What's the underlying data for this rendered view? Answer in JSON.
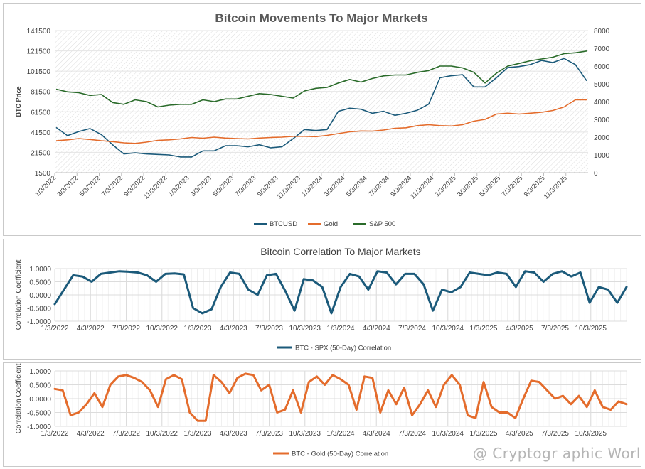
{
  "watermark": "@ Cryptogr  aphic Worl",
  "charts": [
    {
      "type": "line",
      "title": "Bitcoin Movements To Major Markets",
      "ylabel": "BTC Price",
      "y2label": "",
      "ylim": [
        1500,
        141500
      ],
      "y2lim": [
        0,
        8000
      ],
      "yticks": [
        "141500",
        "121500",
        "101500",
        "81500",
        "61500",
        "41500",
        "21500",
        "1500"
      ],
      "y2ticks": [
        "8000",
        "7000",
        "6000",
        "5000",
        "4000",
        "3000",
        "2000",
        "1000",
        "0"
      ],
      "xticks": [
        "1/3/2022",
        "3/3/2022",
        "5/3/2022",
        "7/3/2022",
        "9/3/2022",
        "11/3/2022",
        "1/3/2023",
        "3/3/2023",
        "5/3/2023",
        "7/3/2023",
        "9/3/2023",
        "11/3/2023",
        "1/3/2024",
        "3/3/2024",
        "5/3/2024",
        "7/3/2024",
        "9/3/2024",
        "11/3/2024",
        "1/3/2025",
        "3/3/2025",
        "5/3/2025",
        "7/3/2025",
        "9/3/2025",
        "11/3/2025"
      ],
      "legend_position": "bottom",
      "series": [
        {
          "name": "BTCUSD",
          "axis": "left",
          "color": "#1b5a7a",
          "values": [
            46000,
            38000,
            42000,
            45000,
            39000,
            29000,
            20000,
            21000,
            20000,
            19500,
            19000,
            17000,
            17000,
            23000,
            23000,
            28000,
            28000,
            27000,
            29000,
            26000,
            27000,
            35000,
            44000,
            43000,
            44000,
            62000,
            65000,
            64000,
            60000,
            62000,
            58000,
            60000,
            63000,
            69000,
            95000,
            97000,
            98000,
            86000,
            86000,
            95000,
            105000,
            106000,
            108000,
            112000,
            110000,
            114000,
            108000,
            92000
          ]
        },
        {
          "name": "Gold",
          "axis": "right",
          "color": "#e46c2c",
          "values": [
            1800,
            1850,
            1920,
            1870,
            1800,
            1750,
            1680,
            1650,
            1720,
            1820,
            1850,
            1900,
            1980,
            1940,
            2000,
            1950,
            1920,
            1900,
            1950,
            1980,
            2000,
            2050,
            2050,
            2030,
            2100,
            2200,
            2300,
            2350,
            2340,
            2400,
            2500,
            2530,
            2650,
            2700,
            2650,
            2630,
            2700,
            2900,
            3000,
            3300,
            3350,
            3300,
            3350,
            3400,
            3500,
            3700,
            4100,
            4100
          ]
        },
        {
          "name": "S&P 500",
          "axis": "right",
          "color": "#2a6b2a",
          "values": [
            4700,
            4550,
            4500,
            4350,
            4400,
            3950,
            3850,
            4100,
            4000,
            3700,
            3800,
            3850,
            3850,
            4100,
            4000,
            4150,
            4150,
            4300,
            4450,
            4400,
            4300,
            4200,
            4600,
            4750,
            4800,
            5050,
            5250,
            5100,
            5300,
            5450,
            5500,
            5500,
            5650,
            5750,
            6000,
            6000,
            5900,
            5650,
            5050,
            5600,
            6000,
            6150,
            6300,
            6400,
            6500,
            6700,
            6750,
            6850
          ]
        }
      ]
    },
    {
      "type": "line",
      "title": "Bitcoin Correlation To Major Markets",
      "ylabel": "Correlation Coefficient",
      "ylim": [
        -1,
        1
      ],
      "yticks": [
        "1.0000",
        "0.5000",
        "0.0000",
        "-0.5000",
        "-1.0000"
      ],
      "xticks": [
        "1/3/2022",
        "4/3/2022",
        "7/3/2022",
        "10/3/2022",
        "1/3/2023",
        "4/3/2023",
        "7/3/2023",
        "10/3/2023",
        "1/3/2024",
        "4/3/2024",
        "7/3/2024",
        "10/3/2024",
        "1/3/2025",
        "4/3/2025",
        "7/3/2025",
        "10/3/2025"
      ],
      "legend_position": "bottom",
      "series": [
        {
          "name": "BTC - SPX (50-Day) Correlation",
          "color": "#1b5a7a",
          "values": [
            -0.35,
            0.2,
            0.75,
            0.7,
            0.5,
            0.8,
            0.85,
            0.9,
            0.88,
            0.85,
            0.75,
            0.5,
            0.8,
            0.82,
            0.78,
            -0.5,
            -0.7,
            -0.55,
            0.3,
            0.85,
            0.8,
            0.2,
            0.0,
            0.75,
            0.8,
            0.15,
            -0.6,
            0.6,
            0.55,
            0.3,
            -0.7,
            0.3,
            0.8,
            0.7,
            0.2,
            0.9,
            0.85,
            0.4,
            0.8,
            0.8,
            0.4,
            -0.6,
            0.2,
            0.1,
            0.3,
            0.85,
            0.8,
            0.75,
            0.85,
            0.8,
            0.3,
            0.9,
            0.85,
            0.5,
            0.8,
            0.9,
            0.7,
            0.85,
            -0.3,
            0.3,
            0.2,
            -0.3,
            0.3
          ]
        }
      ]
    },
    {
      "type": "line",
      "title": "",
      "ylabel": "Correlation Coefficient",
      "ylim": [
        -1,
        1
      ],
      "yticks": [
        "1.0000",
        "0.5000",
        "0.0000",
        "-0.5000",
        "-1.0000"
      ],
      "xticks": [
        "1/3/2022",
        "4/3/2022",
        "7/3/2022",
        "10/3/2022",
        "1/3/2023",
        "4/3/2023",
        "7/3/2023",
        "10/3/2023",
        "1/3/2024",
        "4/3/2024",
        "7/3/2024",
        "10/3/2024",
        "1/3/2025",
        "4/3/2025",
        "7/3/2025",
        "10/3/2025"
      ],
      "legend_position": "bottom",
      "series": [
        {
          "name": "BTC - Gold (50-Day) Correlation",
          "color": "#e46c2c",
          "values": [
            0.35,
            0.3,
            -0.6,
            -0.5,
            -0.2,
            0.2,
            -0.3,
            0.5,
            0.8,
            0.85,
            0.75,
            0.6,
            0.3,
            -0.3,
            0.7,
            0.85,
            0.7,
            -0.5,
            -0.8,
            -0.8,
            0.85,
            0.6,
            0.2,
            0.75,
            0.9,
            0.85,
            0.3,
            0.5,
            -0.5,
            -0.4,
            0.3,
            -0.5,
            0.6,
            0.8,
            0.5,
            0.85,
            0.7,
            0.5,
            -0.4,
            0.8,
            0.75,
            -0.5,
            0.3,
            -0.2,
            0.4,
            -0.6,
            -0.2,
            0.3,
            -0.3,
            0.5,
            0.85,
            0.5,
            -0.6,
            -0.7,
            0.6,
            -0.3,
            -0.5,
            -0.5,
            -0.7,
            0.0,
            0.65,
            0.6,
            0.3,
            0.0,
            0.1,
            -0.2,
            0.1,
            -0.3,
            0.3,
            -0.3,
            -0.4,
            -0.1,
            -0.2
          ]
        }
      ]
    }
  ]
}
